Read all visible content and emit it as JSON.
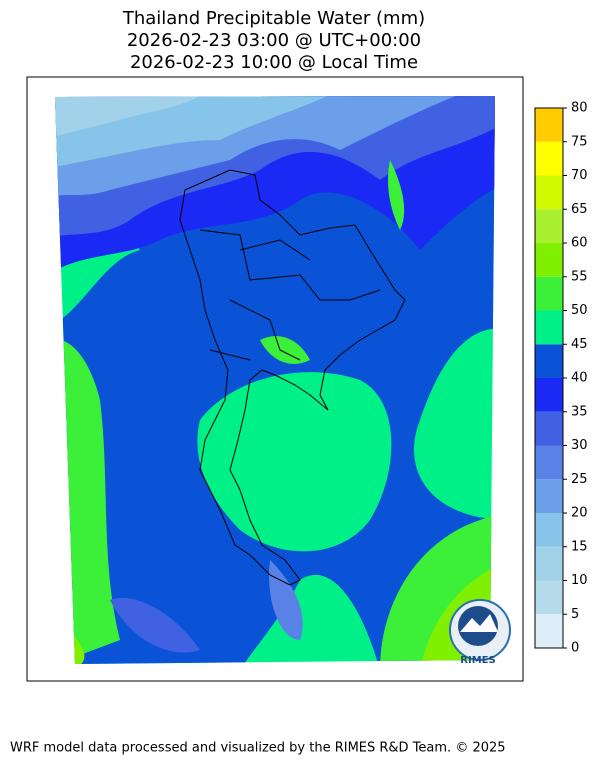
{
  "header": {
    "title_lines": [
      "Thailand Precipitable Water (mm)",
      "2026-02-23 03:00 @ UTC+00:00",
      "2026-02-23 10:00 @ Local Time"
    ]
  },
  "colorbar": {
    "lim": [
      0,
      80
    ],
    "ticks": [
      0,
      5,
      10,
      15,
      20,
      25,
      30,
      35,
      40,
      45,
      50,
      55,
      60,
      65,
      70,
      75,
      80
    ],
    "colors": [
      "#ddeef8",
      "#b6dcec",
      "#a2d2ea",
      "#87c4e9",
      "#6c9fe9",
      "#5a82e6",
      "#4062e2",
      "#1a2af4",
      "#0a52d6",
      "#00f088",
      "#3cf03a",
      "#80f000",
      "#a8f030",
      "#d2fa00",
      "#ffff00",
      "#ffcc00"
    ]
  },
  "logo": {
    "text": "RIMES"
  },
  "footer": {
    "text": "WRF model data processed and visualized by the RIMES R&D Team. © 2025"
  }
}
